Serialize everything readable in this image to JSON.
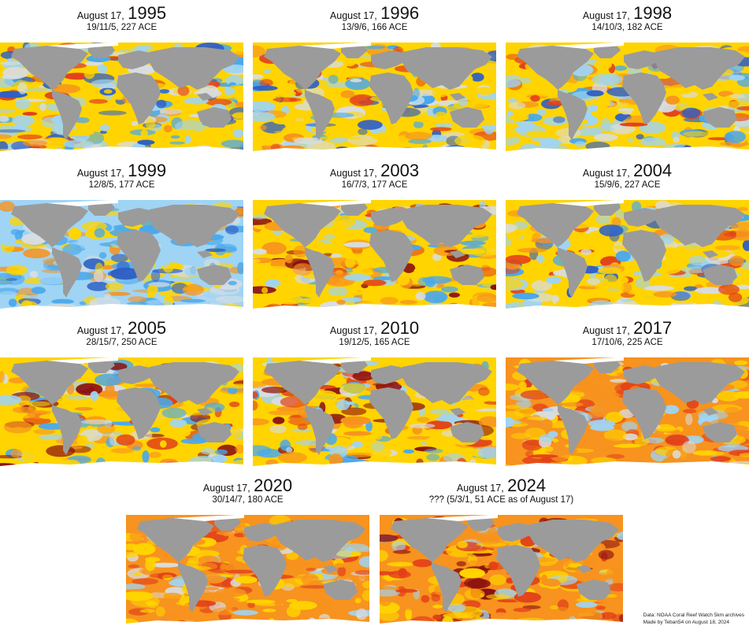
{
  "panels": [
    {
      "date": "August 17,",
      "year": "1995",
      "stats": "19/11/5, 227 ACE",
      "tone": "cool-mixed"
    },
    {
      "date": "August 17,",
      "year": "1996",
      "stats": "13/9/6, 166 ACE",
      "tone": "cool-mixed"
    },
    {
      "date": "August 17,",
      "year": "1998",
      "stats": "14/10/3, 182 ACE",
      "tone": "cool-mixed"
    },
    {
      "date": "August 17,",
      "year": "1999",
      "stats": "12/8/5, 177 ACE",
      "tone": "cool"
    },
    {
      "date": "August 17,",
      "year": "2003",
      "stats": "16/7/3, 177 ACE",
      "tone": "warm-mixed"
    },
    {
      "date": "August 17,",
      "year": "2004",
      "stats": "15/9/6, 227 ACE",
      "tone": "cool-mixed"
    },
    {
      "date": "August 17,",
      "year": "2005",
      "stats": "28/15/7, 250 ACE",
      "tone": "warm-mixed"
    },
    {
      "date": "August 17,",
      "year": "2010",
      "stats": "19/12/5, 165 ACE",
      "tone": "warm-mixed"
    },
    {
      "date": "August 17,",
      "year": "2017",
      "stats": "17/10/6, 225 ACE",
      "tone": "warm"
    },
    {
      "date": "August 17,",
      "year": "2020",
      "stats": "30/14/7, 180 ACE",
      "tone": "warm"
    },
    {
      "date": "August 17,",
      "year": "2024",
      "stats": "??? (5/3/1, 51 ACE as of August 17)",
      "tone": "hot"
    }
  ],
  "credits": {
    "line1": "Data: NOAA Coral Reef Watch 5km archives",
    "line2": "Made by Teban54 on August 18, 2024"
  },
  "colors": {
    "land": "#9b9b9b",
    "ice": "#ffffff",
    "deep_blue": "#2f5fc4",
    "blue": "#4aa8ec",
    "light_blue": "#9fd4f5",
    "neutral": "#d8dde2",
    "yellow": "#ffd400",
    "orange": "#f7931e",
    "red": "#e2401a",
    "dark_red": "#8c1010"
  }
}
